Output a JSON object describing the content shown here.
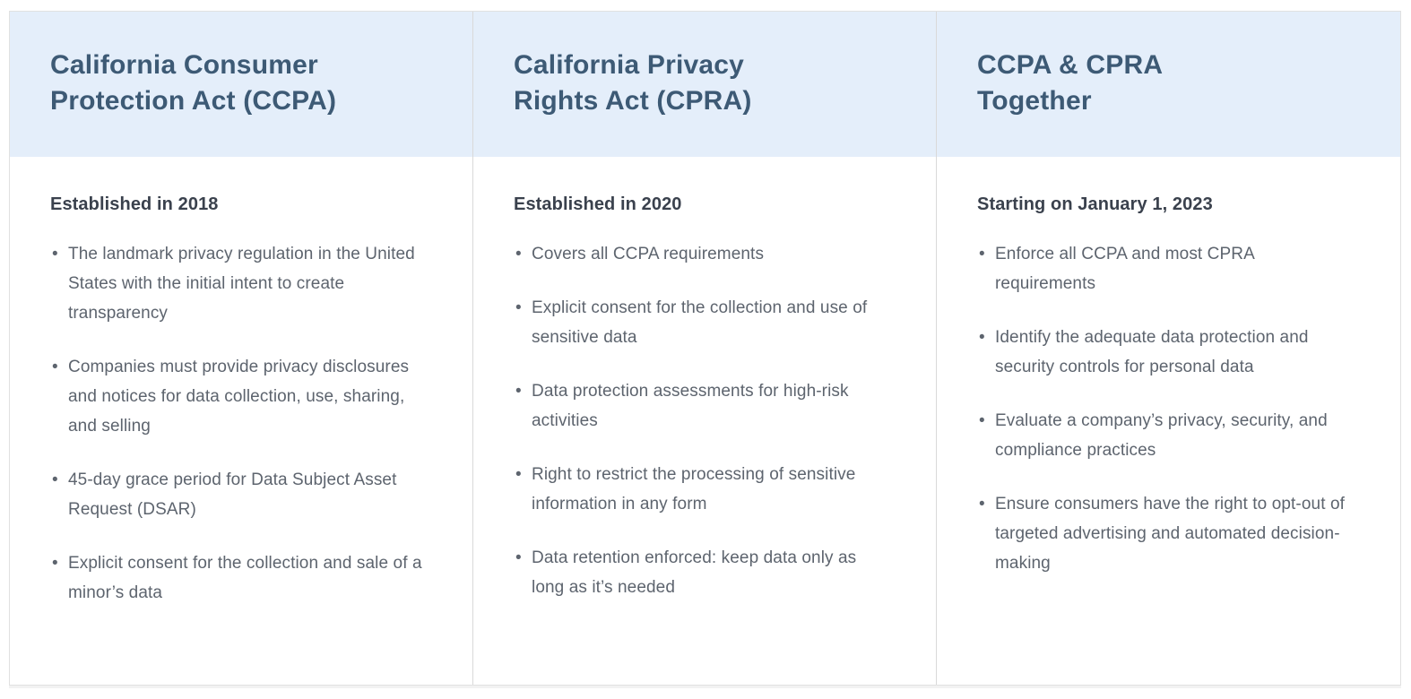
{
  "theme": {
    "header_background": "#e4eefa",
    "title_color": "#3d5a75",
    "subtitle_color": "#3a414d",
    "body_text_color": "#5d646e",
    "divider_color": "#d9d9d9",
    "border_color": "#e1e1e1"
  },
  "table": {
    "columns": [
      {
        "title": "California Consumer Protection Act (CCPA)",
        "title_lines": [
          "California Consumer",
          "Protection Act (CCPA)"
        ],
        "subtitle": "Established in 2018",
        "bullets": [
          "The landmark privacy regulation in the United States with the initial intent to create transparency",
          "Companies must provide privacy disclosures and notices for data collection, use, sharing, and selling",
          "45-day grace period for Data Subject Asset Request (DSAR)",
          "Explicit consent for the collection and sale of a minor’s data"
        ]
      },
      {
        "title": "California Privacy Rights Act (CPRA)",
        "title_lines": [
          "California Privacy",
          "Rights Act (CPRA)"
        ],
        "subtitle": "Established in 2020",
        "bullets": [
          "Covers all CCPA requirements",
          "Explicit consent for the collection and use of sensitive data",
          "Data protection assessments for high-risk activities",
          "Right to restrict the processing of sensitive information in any form",
          "Data retention enforced: keep data only as long as it’s needed"
        ]
      },
      {
        "title": "CCPA & CPRA Together",
        "title_lines": [
          "CCPA & CPRA",
          "Together"
        ],
        "subtitle": "Starting on January 1, 2023",
        "bullets": [
          "Enforce all CCPA and most CPRA requirements",
          "Identify the adequate data protection and security controls for personal data",
          "Evaluate a company’s privacy, security, and compliance practices",
          "Ensure consumers have the right to opt-out of targeted advertising and automated decision-making"
        ]
      }
    ]
  }
}
